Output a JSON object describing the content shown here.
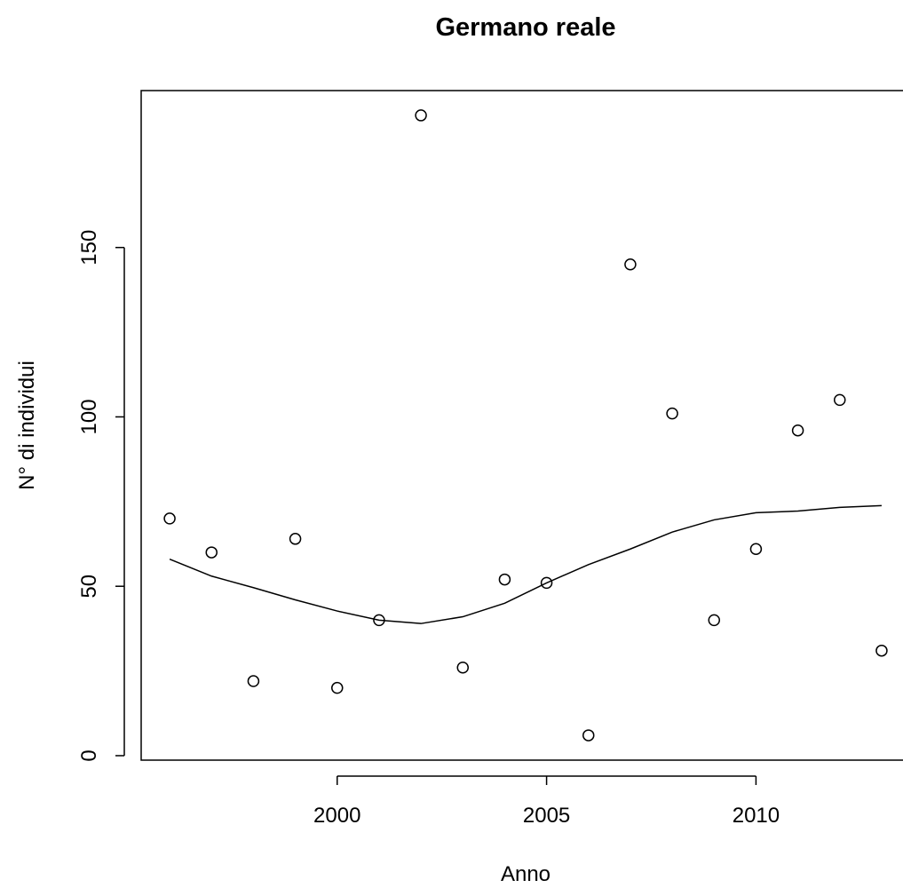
{
  "chart_data": {
    "type": "scatter",
    "title": "Germano reale",
    "x_label": "Anno",
    "y_label": "N° di individui",
    "x": [
      1996,
      1997,
      1998,
      1999,
      2000,
      2001,
      2002,
      2003,
      2004,
      2005,
      2006,
      2007,
      2008,
      2009,
      2010,
      2011,
      2012,
      2013
    ],
    "values": [
      70,
      60,
      22,
      64,
      20,
      40,
      189,
      26,
      52,
      51,
      6,
      145,
      101,
      40,
      61,
      96,
      105,
      31
    ],
    "trend": [
      58,
      53,
      49.6,
      46,
      42.7,
      40,
      39,
      41,
      45,
      51,
      56.4,
      61,
      66,
      69.6,
      71.7,
      72.2,
      73.3,
      73.8
    ],
    "color": "#000000",
    "xlim": [
      1995.32,
      2013.68
    ],
    "ylim": [
      -1.32,
      196.32
    ],
    "xticks": [
      2000,
      2005,
      2010
    ],
    "yticks": [
      0,
      50,
      100,
      150
    ]
  }
}
